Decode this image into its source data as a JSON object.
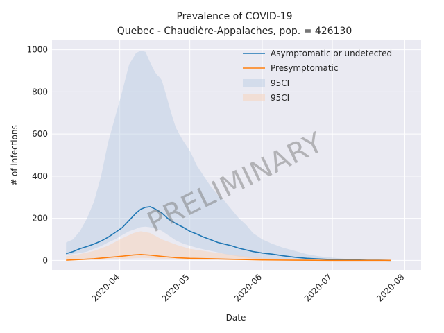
{
  "chart_data": {
    "type": "line",
    "title": "Prevalence of COVID-19",
    "subtitle": "Quebec - Chaudière-Appalaches, pop. = 426130",
    "xlabel": "Date",
    "ylabel": "# of infections",
    "x_ticks": [
      "2020-04",
      "2020-05",
      "2020-06",
      "2020-07",
      "2020-08"
    ],
    "y_ticks": [
      0,
      200,
      400,
      600,
      800,
      1000
    ],
    "xlim": [
      "2020-03-03",
      "2020-08-08"
    ],
    "ylim": [
      -45,
      1045
    ],
    "grid": true,
    "legend_position": "top-right",
    "watermark": "PRELIMINARY",
    "colors": {
      "asymptomatic": "#1f77b4",
      "presymptomatic": "#ff7f0e",
      "asymptomatic_ci": "#b7cde3",
      "presymptomatic_ci": "#f5d3bd",
      "background": "#eaeaf2",
      "grid": "#ffffff"
    },
    "series": [
      {
        "name": "Asymptomatic or undetected",
        "x": [
          "2020-03-09",
          "2020-03-12",
          "2020-03-15",
          "2020-03-18",
          "2020-03-21",
          "2020-03-24",
          "2020-03-27",
          "2020-03-30",
          "2020-04-02",
          "2020-04-05",
          "2020-04-08",
          "2020-04-10",
          "2020-04-12",
          "2020-04-14",
          "2020-04-16",
          "2020-04-19",
          "2020-04-22",
          "2020-04-25",
          "2020-04-28",
          "2020-05-01",
          "2020-05-04",
          "2020-05-07",
          "2020-05-10",
          "2020-05-13",
          "2020-05-16",
          "2020-05-19",
          "2020-05-22",
          "2020-05-25",
          "2020-05-28",
          "2020-06-01",
          "2020-06-05",
          "2020-06-10",
          "2020-06-15",
          "2020-06-20",
          "2020-06-25",
          "2020-07-01",
          "2020-07-06",
          "2020-07-11",
          "2020-07-16",
          "2020-07-21",
          "2020-07-26"
        ],
        "values": [
          32,
          42,
          56,
          66,
          78,
          92,
          110,
          132,
          155,
          190,
          225,
          243,
          252,
          255,
          245,
          225,
          195,
          175,
          158,
          138,
          125,
          110,
          98,
          85,
          77,
          69,
          58,
          50,
          42,
          35,
          30,
          22,
          15,
          10,
          7,
          4,
          3,
          2,
          1,
          1,
          0
        ]
      },
      {
        "name": "Presymptomatic",
        "x": [
          "2020-03-09",
          "2020-03-15",
          "2020-03-21",
          "2020-03-27",
          "2020-04-02",
          "2020-04-07",
          "2020-04-10",
          "2020-04-14",
          "2020-04-19",
          "2020-04-25",
          "2020-05-01",
          "2020-05-10",
          "2020-05-20",
          "2020-06-01",
          "2020-06-15",
          "2020-07-01",
          "2020-07-15",
          "2020-07-26"
        ],
        "values": [
          1,
          4,
          8,
          14,
          20,
          26,
          28,
          25,
          19,
          13,
          10,
          8,
          5,
          2,
          1,
          0,
          0,
          0
        ]
      }
    ],
    "bands": [
      {
        "name": "95CI",
        "x": [
          "2020-03-09",
          "2020-03-12",
          "2020-03-15",
          "2020-03-18",
          "2020-03-21",
          "2020-03-24",
          "2020-03-27",
          "2020-03-30",
          "2020-04-02",
          "2020-04-05",
          "2020-04-08",
          "2020-04-10",
          "2020-04-12",
          "2020-04-14",
          "2020-04-16",
          "2020-04-17",
          "2020-04-18",
          "2020-04-19",
          "2020-04-21",
          "2020-04-23",
          "2020-04-25",
          "2020-04-28",
          "2020-05-01",
          "2020-05-04",
          "2020-05-07",
          "2020-05-10",
          "2020-05-13",
          "2020-05-16",
          "2020-05-19",
          "2020-05-22",
          "2020-05-25",
          "2020-05-28",
          "2020-06-01",
          "2020-06-05",
          "2020-06-10",
          "2020-06-15",
          "2020-06-20",
          "2020-06-25",
          "2020-07-01",
          "2020-07-06",
          "2020-07-11",
          "2020-07-16",
          "2020-07-21",
          "2020-07-26"
        ],
        "upper": [
          85,
          100,
          140,
          200,
          280,
          400,
          560,
          680,
          800,
          930,
          985,
          995,
          990,
          940,
          895,
          880,
          870,
          855,
          780,
          700,
          630,
          570,
          520,
          450,
          400,
          350,
          310,
          280,
          240,
          200,
          170,
          130,
          100,
          80,
          60,
          45,
          30,
          20,
          13,
          8,
          5,
          3,
          2,
          1
        ],
        "lower": [
          25,
          30,
          35,
          42,
          55,
          68,
          85,
          100,
          120,
          138,
          150,
          158,
          160,
          157,
          152,
          148,
          145,
          140,
          125,
          110,
          95,
          80,
          70,
          60,
          52,
          45,
          38,
          30,
          24,
          18,
          13,
          9,
          5,
          3,
          1,
          0,
          0,
          0,
          0,
          0,
          0,
          0,
          0,
          0
        ]
      },
      {
        "name": "95CI",
        "x": [
          "2020-03-09",
          "2020-03-15",
          "2020-03-21",
          "2020-03-27",
          "2020-04-02",
          "2020-04-07",
          "2020-04-10",
          "2020-04-14",
          "2020-04-19",
          "2020-04-25",
          "2020-05-01",
          "2020-05-10",
          "2020-05-20",
          "2020-06-01",
          "2020-06-15",
          "2020-07-01",
          "2020-07-15",
          "2020-07-26"
        ],
        "upper": [
          20,
          30,
          45,
          70,
          105,
          130,
          138,
          130,
          100,
          75,
          55,
          40,
          25,
          12,
          5,
          2,
          1,
          0
        ],
        "lower": [
          0,
          1,
          2,
          4,
          7,
          10,
          12,
          11,
          8,
          5,
          3,
          2,
          1,
          0,
          0,
          0,
          0,
          0
        ]
      }
    ]
  }
}
